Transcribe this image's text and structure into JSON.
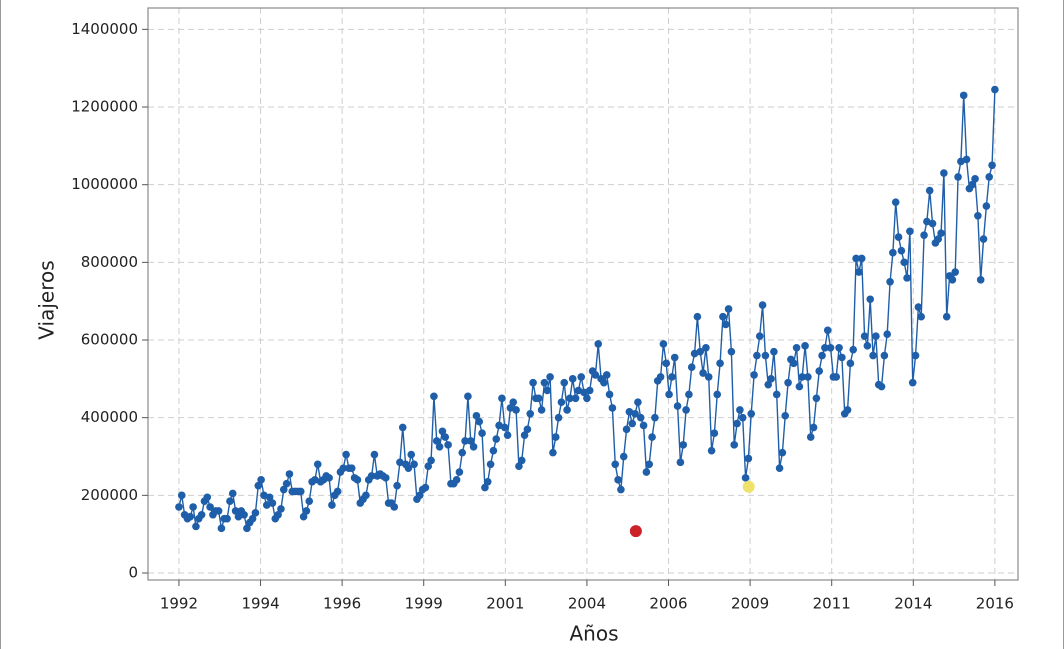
{
  "chart_data": {
    "type": "line",
    "x_label": "Años",
    "y_label": "Viajeros",
    "x": [
      1992,
      1992.083,
      1992.167,
      1992.25,
      1992.333,
      1992.417,
      1992.5,
      1992.583,
      1992.667,
      1992.75,
      1992.833,
      1992.917,
      1993,
      1993.083,
      1993.167,
      1993.25,
      1993.333,
      1993.417,
      1993.5,
      1993.583,
      1993.667,
      1993.75,
      1993.833,
      1993.917,
      1994,
      1994.083,
      1994.167,
      1994.25,
      1994.333,
      1994.417,
      1994.5,
      1994.583,
      1994.667,
      1994.75,
      1994.833,
      1994.917,
      1995,
      1995.083,
      1995.167,
      1995.25,
      1995.333,
      1995.417,
      1995.5,
      1995.583,
      1995.667,
      1995.75,
      1995.833,
      1995.917,
      1996,
      1996.083,
      1996.167,
      1996.25,
      1996.333,
      1996.417,
      1996.5,
      1996.583,
      1996.667,
      1996.75,
      1996.833,
      1996.917,
      1997,
      1997.083,
      1997.167,
      1997.25,
      1997.333,
      1997.417,
      1997.5,
      1997.583,
      1997.667,
      1997.75,
      1997.833,
      1997.917,
      1998,
      1998.083,
      1998.167,
      1998.25,
      1998.333,
      1998.417,
      1998.5,
      1998.583,
      1998.667,
      1998.75,
      1998.833,
      1998.917,
      1999,
      1999.083,
      1999.167,
      1999.25,
      1999.333,
      1999.417,
      1999.5,
      1999.583,
      1999.667,
      1999.75,
      1999.833,
      1999.917,
      2000,
      2000.083,
      2000.167,
      2000.25,
      2000.333,
      2000.417,
      2000.5,
      2000.583,
      2000.667,
      2000.75,
      2000.833,
      2000.917,
      2001,
      2001.083,
      2001.167,
      2001.25,
      2001.333,
      2001.417,
      2001.5,
      2001.583,
      2001.667,
      2001.75,
      2001.833,
      2001.917,
      2002,
      2002.083,
      2002.167,
      2002.25,
      2002.333,
      2002.417,
      2002.5,
      2002.583,
      2002.667,
      2002.75,
      2002.833,
      2002.917,
      2003,
      2003.083,
      2003.167,
      2003.25,
      2003.333,
      2003.417,
      2003.5,
      2003.583,
      2003.667,
      2003.75,
      2003.833,
      2003.917,
      2004,
      2004.083,
      2004.167,
      2004.25,
      2004.333,
      2004.417,
      2004.5,
      2004.583,
      2004.667,
      2004.75,
      2004.833,
      2004.917,
      2005,
      2005.083,
      2005.167,
      2005.25,
      2005.333,
      2005.417,
      2005.5,
      2005.583,
      2005.667,
      2005.75,
      2005.833,
      2005.917,
      2006,
      2006.083,
      2006.167,
      2006.25,
      2006.333,
      2006.417,
      2006.5,
      2006.583,
      2006.667,
      2006.75,
      2006.833,
      2006.917,
      2007,
      2007.083,
      2007.167,
      2007.25,
      2007.333,
      2007.417,
      2007.5,
      2007.583,
      2007.667,
      2007.75,
      2007.833,
      2007.917,
      2008,
      2008.083,
      2008.167,
      2008.25,
      2008.333,
      2008.417,
      2008.5,
      2008.583,
      2008.667,
      2008.75,
      2008.833,
      2008.917,
      2009,
      2009.083,
      2009.167,
      2009.25,
      2009.333,
      2009.417,
      2009.5,
      2009.583,
      2009.667,
      2009.75,
      2009.833,
      2009.917,
      2010,
      2010.083,
      2010.167,
      2010.25,
      2010.333,
      2010.417,
      2010.5,
      2010.583,
      2010.667,
      2010.75,
      2010.833,
      2010.917,
      2011,
      2011.083,
      2011.167,
      2011.25,
      2011.333,
      2011.417,
      2011.5,
      2011.583,
      2011.667,
      2011.75,
      2011.833,
      2011.917,
      2012,
      2012.083,
      2012.167,
      2012.25,
      2012.333,
      2012.417,
      2012.5,
      2012.583,
      2012.667,
      2012.75,
      2012.833,
      2012.917,
      2013,
      2013.083,
      2013.167,
      2013.25,
      2013.333,
      2013.417,
      2013.5,
      2013.583,
      2013.667,
      2013.75,
      2013.833,
      2013.917,
      2014,
      2014.083,
      2014.167,
      2014.25,
      2014.333,
      2014.417,
      2014.5,
      2014.583,
      2014.667,
      2014.75,
      2014.833,
      2014.917,
      2015,
      2015.083,
      2015.167,
      2015.25,
      2015.333,
      2015.417,
      2015.5,
      2015.583,
      2015.667,
      2015.75,
      2015.833,
      2015.917,
      2016
    ],
    "series": [
      {
        "color": "#1f5ea8",
        "values": [
          170000,
          200000,
          150000,
          140000,
          145000,
          170000,
          120000,
          140000,
          150000,
          185000,
          195000,
          170000,
          150000,
          160000,
          160000,
          115000,
          140000,
          140000,
          185000,
          205000,
          160000,
          145000,
          160000,
          150000,
          115000,
          130000,
          140000,
          155000,
          225000,
          240000,
          200000,
          175000,
          195000,
          180000,
          140000,
          150000,
          165000,
          215000,
          230000,
          255000,
          210000,
          210000,
          210000,
          210000,
          145000,
          160000,
          185000,
          235000,
          240000,
          280000,
          235000,
          240000,
          250000,
          245000,
          175000,
          200000,
          210000,
          260000,
          270000,
          305000,
          270000,
          270000,
          245000,
          240000,
          180000,
          190000,
          200000,
          240000,
          250000,
          305000,
          250000,
          255000,
          250000,
          245000,
          180000,
          180000,
          170000,
          225000,
          285000,
          375000,
          280000,
          270000,
          305000,
          280000,
          190000,
          200000,
          215000,
          220000,
          275000,
          290000,
          455000,
          340000,
          325000,
          365000,
          350000,
          330000,
          230000,
          230000,
          240000,
          260000,
          310000,
          340000,
          455000,
          340000,
          325000,
          405000,
          390000,
          360000,
          220000,
          235000,
          280000,
          315000,
          345000,
          380000,
          450000,
          375000,
          355000,
          425000,
          440000,
          420000,
          275000,
          290000,
          355000,
          370000,
          410000,
          490000,
          450000,
          450000,
          420000,
          490000,
          470000,
          505000,
          310000,
          350000,
          400000,
          440000,
          490000,
          420000,
          450000,
          500000,
          450000,
          470000,
          505000,
          465000,
          450000,
          470000,
          520000,
          510000,
          590000,
          500000,
          490000,
          510000,
          460000,
          425000,
          280000,
          240000,
          215000,
          300000,
          370000,
          415000,
          385000,
          410000,
          440000,
          400000,
          380000,
          260000,
          280000,
          350000,
          400000,
          495000,
          505000,
          590000,
          540000,
          460000,
          505000,
          555000,
          430000,
          285000,
          330000,
          420000,
          460000,
          530000,
          565000,
          660000,
          570000,
          515000,
          580000,
          505000,
          315000,
          360000,
          460000,
          540000,
          660000,
          640000,
          680000,
          570000,
          330000,
          385000,
          420000,
          400000,
          245000,
          295000,
          410000,
          510000,
          560000,
          610000,
          690000,
          560000,
          485000,
          500000,
          570000,
          460000,
          270000,
          310000,
          405000,
          490000,
          550000,
          540000,
          580000,
          480000,
          505000,
          585000,
          505000,
          350000,
          375000,
          450000,
          520000,
          560000,
          580000,
          625000,
          580000,
          505000,
          505000,
          580000,
          555000,
          410000,
          420000,
          540000,
          575000,
          810000,
          775000,
          810000,
          610000,
          585000,
          705000,
          560000,
          610000,
          485000,
          480000,
          560000,
          615000,
          750000,
          825000,
          955000,
          865000,
          830000,
          800000,
          760000,
          880000,
          490000,
          560000,
          685000,
          660000,
          870000,
          905000,
          985000,
          900000,
          850000,
          860000,
          875000,
          1030000,
          660000,
          765000,
          755000,
          775000,
          1020000,
          1060000,
          1230000,
          1065000,
          990000,
          1000000,
          1015000,
          920000,
          755000,
          860000,
          945000,
          1020000,
          1050000,
          1245000
        ]
      },
      {
        "color": "#cc2127",
        "x": [
          2005.44
        ],
        "values": [
          108000
        ]
      },
      {
        "color": "#efe26a",
        "x": [
          2008.76
        ],
        "values": [
          222000
        ]
      }
    ],
    "xlim": [
      1991.09,
      2016.68
    ],
    "xticks": [
      1992,
      {
        "value": 1994.4,
        "label": "1994"
      },
      {
        "value": 1996.8,
        "label": "1996"
      },
      {
        "value": 1999.2,
        "label": "1999"
      },
      {
        "value": 2001.6,
        "label": "2001"
      },
      2004,
      {
        "value": 2006.4,
        "label": "2006"
      },
      {
        "value": 2008.8,
        "label": "2009"
      },
      {
        "value": 2011.2,
        "label": "2011"
      },
      {
        "value": 2013.6,
        "label": "2014"
      },
      2016
    ],
    "ylim": [
      -18000,
      1455000
    ],
    "yticks": [
      0,
      200000,
      400000,
      600000,
      800000,
      1000000,
      1200000,
      1400000
    ],
    "grid": true
  }
}
